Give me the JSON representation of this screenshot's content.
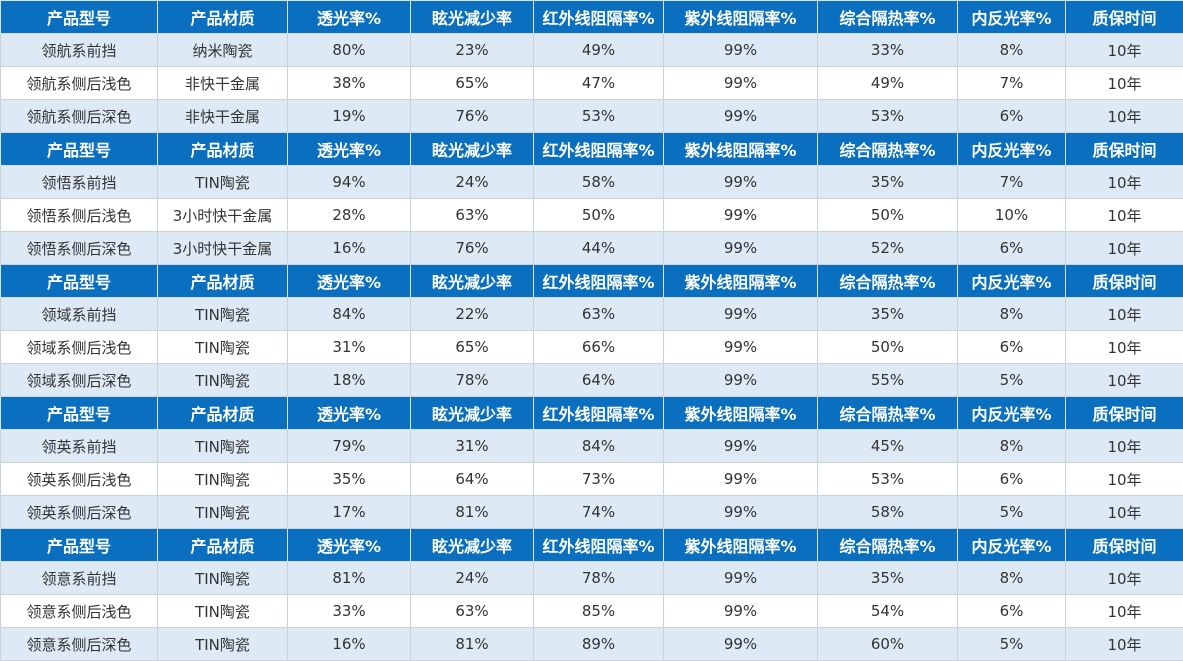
{
  "colors": {
    "header_bg": "#0b6fbf",
    "header_text": "#ffffff",
    "row_light": "#dde9f5",
    "row_white": "#ffffff"
  },
  "headers": [
    "产品型号",
    "产品材质",
    "透光率%",
    "眩光减少率",
    "红外线阻隔率%",
    "紫外线阻隔率%",
    "综合隔热率%",
    "内反光率%",
    "质保时间"
  ],
  "groups": [
    {
      "rows": [
        [
          "领航系前挡",
          "纳米陶瓷",
          "80%",
          "23%",
          "49%",
          "99%",
          "33%",
          "8%",
          "10年"
        ],
        [
          "领航系侧后浅色",
          "非快干金属",
          "38%",
          "65%",
          "47%",
          "99%",
          "49%",
          "7%",
          "10年"
        ],
        [
          "领航系侧后深色",
          "非快干金属",
          "19%",
          "76%",
          "53%",
          "99%",
          "53%",
          "6%",
          "10年"
        ]
      ]
    },
    {
      "rows": [
        [
          "领悟系前挡",
          "TIN陶瓷",
          "94%",
          "24%",
          "58%",
          "99%",
          "35%",
          "7%",
          "10年"
        ],
        [
          "领悟系侧后浅色",
          "3小时快干金属",
          "28%",
          "63%",
          "50%",
          "99%",
          "50%",
          "10%",
          "10年"
        ],
        [
          "领悟系侧后深色",
          "3小时快干金属",
          "16%",
          "76%",
          "44%",
          "99%",
          "52%",
          "6%",
          "10年"
        ]
      ]
    },
    {
      "rows": [
        [
          "领域系前挡",
          "TIN陶瓷",
          "84%",
          "22%",
          "63%",
          "99%",
          "35%",
          "8%",
          "10年"
        ],
        [
          "领域系侧后浅色",
          "TIN陶瓷",
          "31%",
          "65%",
          "66%",
          "99%",
          "50%",
          "6%",
          "10年"
        ],
        [
          "领域系侧后深色",
          "TIN陶瓷",
          "18%",
          "78%",
          "64%",
          "99%",
          "55%",
          "5%",
          "10年"
        ]
      ]
    },
    {
      "rows": [
        [
          "领英系前挡",
          "TIN陶瓷",
          "79%",
          "31%",
          "84%",
          "99%",
          "45%",
          "8%",
          "10年"
        ],
        [
          "领英系侧后浅色",
          "TIN陶瓷",
          "35%",
          "64%",
          "73%",
          "99%",
          "53%",
          "6%",
          "10年"
        ],
        [
          "领英系侧后深色",
          "TIN陶瓷",
          "17%",
          "81%",
          "74%",
          "99%",
          "58%",
          "5%",
          "10年"
        ]
      ]
    },
    {
      "rows": [
        [
          "领意系前挡",
          "TIN陶瓷",
          "81%",
          "24%",
          "78%",
          "99%",
          "35%",
          "8%",
          "10年"
        ],
        [
          "领意系侧后浅色",
          "TIN陶瓷",
          "33%",
          "63%",
          "85%",
          "99%",
          "54%",
          "6%",
          "10年"
        ],
        [
          "领意系侧后深色",
          "TIN陶瓷",
          "16%",
          "81%",
          "89%",
          "99%",
          "60%",
          "5%",
          "10年"
        ]
      ]
    }
  ]
}
